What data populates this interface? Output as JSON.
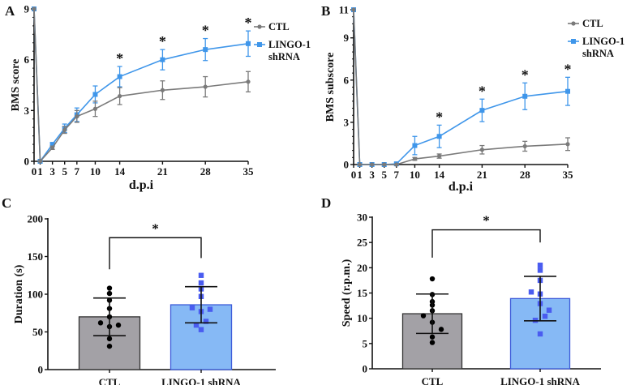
{
  "chart_data": [
    {
      "panel": "A",
      "type": "line",
      "xlabel": "d.p.i",
      "ylabel": "BMS score",
      "x": [
        0,
        1,
        3,
        5,
        7,
        10,
        14,
        21,
        28,
        35
      ],
      "xlim": [
        0,
        35
      ],
      "ylim": [
        0,
        9
      ],
      "yticks": [
        0,
        3,
        6,
        9
      ],
      "legend": "right",
      "series": [
        {
          "name": "CTL",
          "color": "#7a7a7a",
          "marker": "circle",
          "values": [
            9,
            0,
            0.8,
            1.85,
            2.65,
            3.1,
            3.85,
            4.2,
            4.4,
            4.7
          ],
          "errors": [
            0,
            0,
            0.1,
            0.2,
            0.35,
            0.45,
            0.5,
            0.55,
            0.6,
            0.6
          ]
        },
        {
          "name": "LINGO-1 shRNA",
          "legend_lines": [
            "LINGO-1",
            "shRNA"
          ],
          "color": "#3f96ea",
          "marker": "square",
          "values": [
            9,
            0,
            1.0,
            1.95,
            2.75,
            3.95,
            5.0,
            6.0,
            6.6,
            6.95
          ],
          "errors": [
            0,
            0,
            0.1,
            0.25,
            0.4,
            0.5,
            0.6,
            0.6,
            0.65,
            0.75
          ]
        }
      ],
      "significance": {
        "symbol": "*",
        "x": [
          14,
          21,
          28,
          35
        ]
      }
    },
    {
      "panel": "B",
      "type": "line",
      "xlabel": "d.p.i",
      "ylabel": "BMS subscore",
      "x": [
        0,
        1,
        3,
        5,
        7,
        10,
        14,
        21,
        28,
        35
      ],
      "xlim": [
        0,
        35
      ],
      "ylim": [
        0,
        11
      ],
      "yticks": [
        0,
        3,
        6,
        9,
        11
      ],
      "legend": "right",
      "series": [
        {
          "name": "CTL",
          "color": "#7a7a7a",
          "marker": "circle",
          "values": [
            11,
            0,
            0,
            0,
            0,
            0.4,
            0.6,
            1.05,
            1.3,
            1.45
          ],
          "errors": [
            0,
            0,
            0,
            0,
            0,
            0.1,
            0.15,
            0.3,
            0.35,
            0.45
          ]
        },
        {
          "name": "LINGO-1 shRNA",
          "legend_lines": [
            "LINGO-1",
            "shRNA"
          ],
          "color": "#3f96ea",
          "marker": "square",
          "values": [
            11,
            0,
            0,
            0,
            0.05,
            1.35,
            2.0,
            3.85,
            4.85,
            5.2
          ],
          "errors": [
            0,
            0,
            0,
            0,
            0,
            0.65,
            0.8,
            0.8,
            0.95,
            1.0
          ]
        }
      ],
      "significance": {
        "symbol": "*",
        "x": [
          14,
          21,
          28,
          35
        ]
      }
    },
    {
      "panel": "C",
      "type": "bar",
      "ylabel": "Duration (s)",
      "ylim": [
        0,
        200
      ],
      "yticks": [
        0,
        50,
        100,
        150,
        200
      ],
      "categories": [
        "CTL",
        "LINGO-1 shRNA"
      ],
      "values": [
        70,
        86
      ],
      "errors": [
        25,
        24
      ],
      "colors": [
        "#a3a1a6",
        "#86b9f5"
      ],
      "edge_colors": [
        "#333333",
        "#3d5bd9"
      ],
      "point_colors": [
        "#000000",
        "#4a5cf0"
      ],
      "points": [
        [
          108,
          101,
          92,
          81,
          70,
          62,
          57,
          59,
          41,
          31
        ],
        [
          125,
          115,
          107,
          97,
          82,
          77,
          80,
          64,
          59,
          53
        ]
      ],
      "significance": {
        "symbol": "*",
        "bracket_y": 175,
        "left_leg": 133,
        "right_leg": 148
      }
    },
    {
      "panel": "D",
      "type": "bar",
      "ylabel": "Speed (r.p.m.)",
      "ylim": [
        0,
        30
      ],
      "yticks": [
        0,
        5,
        10,
        15,
        20,
        25,
        30
      ],
      "categories": [
        "CTL",
        "LINGO-1 shRNA"
      ],
      "values": [
        10.9,
        13.9
      ],
      "errors": [
        3.9,
        4.4
      ],
      "colors": [
        "#a3a1a6",
        "#86b9f5"
      ],
      "edge_colors": [
        "#333333",
        "#3d5bd9"
      ],
      "point_colors": [
        "#000000",
        "#4a5cf0"
      ],
      "points": [
        [
          17.8,
          14.7,
          12.6,
          13.3,
          11.5,
          10.5,
          9.2,
          7.8,
          6.3,
          5.2
        ],
        [
          20.5,
          19.5,
          17.5,
          14.8,
          15.2,
          12.9,
          11.6,
          10.4,
          9.6,
          6.9
        ]
      ],
      "significance": {
        "symbol": "*",
        "bracket_y": 27.5,
        "left_leg": 22,
        "right_leg": 25
      }
    }
  ]
}
